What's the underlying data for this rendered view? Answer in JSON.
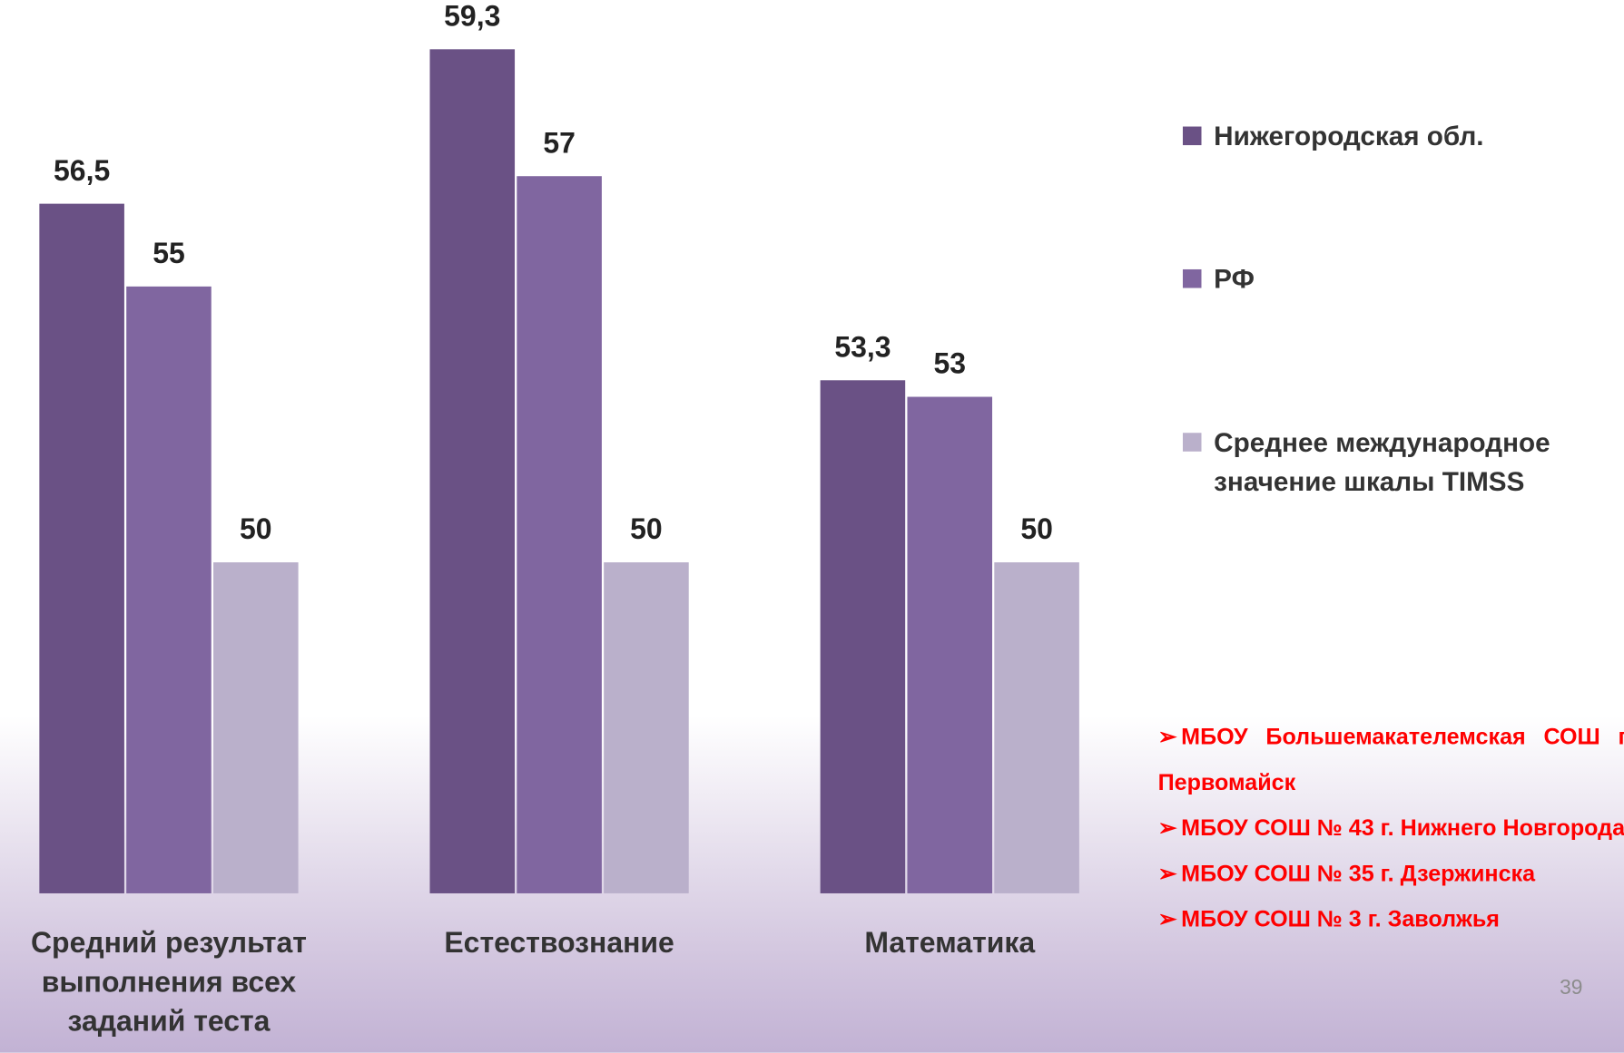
{
  "chart_data": {
    "type": "bar",
    "categories": [
      "Средний результат выполнения всех заданий теста",
      "Естествознание",
      "Математика"
    ],
    "series": [
      {
        "name": "Нижегородская обл.",
        "color": "#6a5185",
        "values": [
          56.5,
          59.3,
          53.3
        ],
        "value_labels": [
          "56,5",
          "59,3",
          "53,3"
        ]
      },
      {
        "name": "РФ",
        "color": "#8066a0",
        "values": [
          55,
          57,
          53
        ]
      },
      {
        "name": "Среднее международное значение шкалы TIMSS",
        "color": "#bab0cb",
        "values": [
          50,
          50,
          50
        ]
      }
    ],
    "ylim": [
      44,
      60
    ],
    "notes": [
      "МБОУ Большемакателемская СОШ г.о.г. Первомайск",
      "МБОУ СОШ № 43 г. Нижнего Новгорода",
      "МБОУ СОШ № 35 г. Дзержинска",
      "МБОУ СОШ № 3 г. Заволжья"
    ],
    "page_number": "39"
  }
}
